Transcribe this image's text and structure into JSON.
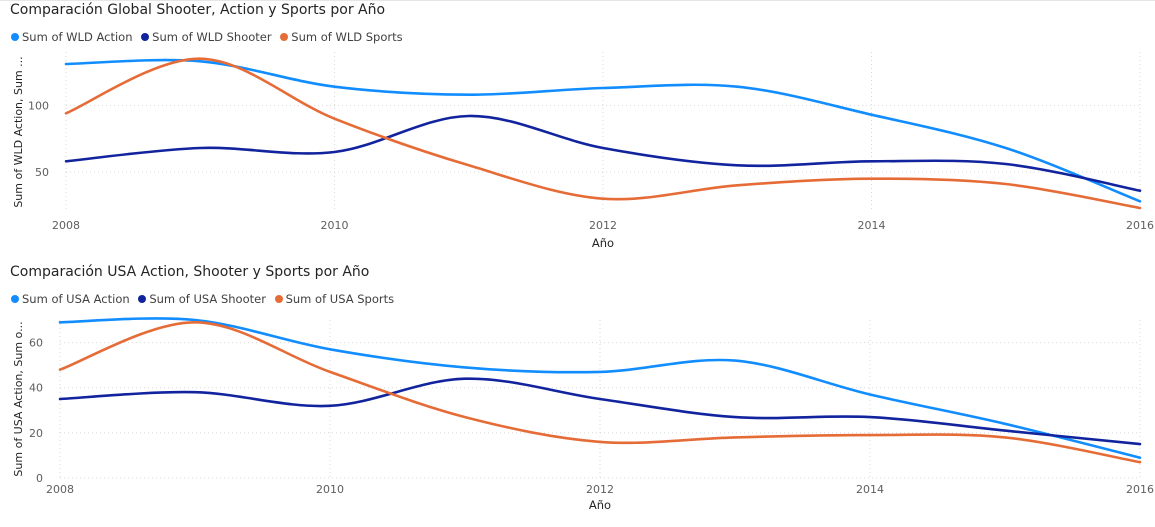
{
  "chart_data": [
    {
      "type": "line",
      "title": "Comparación Global Shooter, Action y Sports por Año",
      "xlabel": "Año",
      "ylabel": "Sum of WLD Action, Sum ...",
      "x": [
        2008,
        2009,
        2010,
        2011,
        2012,
        2013,
        2014,
        2015,
        2016
      ],
      "x_ticks": [
        "2008",
        "2010",
        "2012",
        "2014",
        "2016"
      ],
      "y_ticks": [
        50,
        100
      ],
      "ylim": [
        20,
        140
      ],
      "grid": true,
      "legend_position": "top-left",
      "series": [
        {
          "name": "Sum of WLD Action",
          "color": "#118DFF",
          "values": [
            131,
            133,
            114,
            108,
            113,
            114,
            93,
            68,
            28
          ]
        },
        {
          "name": "Sum of WLD Shooter",
          "color": "#12239E",
          "values": [
            58,
            68,
            65,
            92,
            68,
            55,
            58,
            56,
            36
          ]
        },
        {
          "name": "Sum of WLD Sports",
          "color": "#E66C37",
          "values": [
            94,
            135,
            90,
            55,
            30,
            40,
            45,
            41,
            23
          ]
        }
      ]
    },
    {
      "type": "line",
      "title": "Comparación USA Action, Shooter y Sports por Año",
      "xlabel": "Año",
      "ylabel": "Sum of USA Action, Sum o...",
      "x": [
        2008,
        2009,
        2010,
        2011,
        2012,
        2013,
        2014,
        2015,
        2016
      ],
      "x_ticks": [
        "2008",
        "2010",
        "2012",
        "2014",
        "2016"
      ],
      "y_ticks": [
        0,
        20,
        40,
        60
      ],
      "ylim": [
        0,
        70
      ],
      "grid": true,
      "legend_position": "top-left",
      "series": [
        {
          "name": "Sum of USA Action",
          "color": "#118DFF",
          "values": [
            69,
            70,
            57,
            49,
            47,
            52,
            37,
            24,
            9
          ]
        },
        {
          "name": "Sum of USA Shooter",
          "color": "#12239E",
          "values": [
            35,
            38,
            32,
            44,
            35,
            27,
            27,
            21,
            15
          ]
        },
        {
          "name": "Sum of USA Sports",
          "color": "#E66C37",
          "values": [
            48,
            69,
            47,
            27,
            16,
            18,
            19,
            18,
            7
          ]
        }
      ]
    }
  ]
}
